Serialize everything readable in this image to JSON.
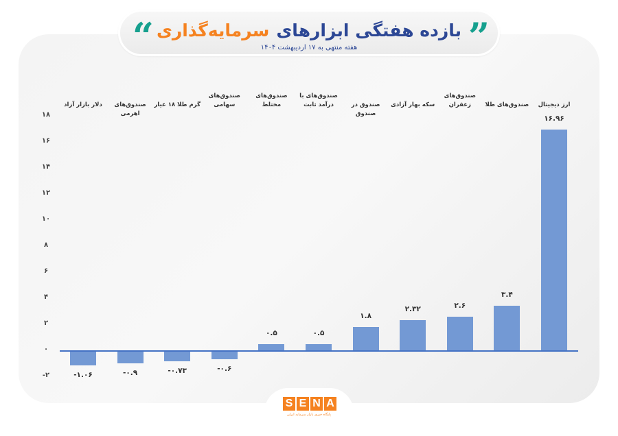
{
  "header": {
    "title_part1": "بازده هفتگی ابزارهای",
    "title_part2": "سرمایه‌گذاری",
    "subtitle": "هفته منتهی به ۱۷ اردیبهشت ۱۴۰۴",
    "quote_open": "”",
    "quote_close": "“",
    "colors": {
      "title_blue": "#2c4795",
      "title_orange": "#f58220",
      "quote_green": "#16a08e"
    }
  },
  "chart_data": {
    "type": "bar",
    "title": "بازده هفتگی ابزارهای سرمایه‌گذاری",
    "subtitle": "هفته منتهی به ۱۷ اردیبهشت ۱۴۰۴",
    "xlabel": "",
    "ylabel": "",
    "ylim": [
      -2,
      18
    ],
    "yticks": [
      "۱۸",
      "۱۶",
      "۱۴",
      "۱۲",
      "۱۰",
      "۸",
      "۶",
      "۴",
      "۲",
      "۰",
      "-۲"
    ],
    "ytick_values": [
      18,
      16,
      14,
      12,
      10,
      8,
      6,
      4,
      2,
      0,
      -2
    ],
    "grid": false,
    "legend": "none",
    "bar_color": "#7399d4",
    "categories": [
      "دلار بازار آزاد",
      "صندوق‌های اهرمی",
      "گرم طلا ۱۸ عیار",
      "صندوق‌های سهامی",
      "صندوق‌های مختلط",
      "صندوق‌های با درآمد ثابت",
      "صندوق در صندوق",
      "سکه بهار آزادی",
      "صندوق‌های زعفران",
      "صندوق‌های طلا",
      "ارز دیجیتال"
    ],
    "category_lines": [
      [
        "دلار بازار آزاد"
      ],
      [
        "صندوق‌های اهرمی"
      ],
      [
        "گرم طلا ۱۸ عیار"
      ],
      [
        "صندوق‌های",
        "سهامی"
      ],
      [
        "صندوق‌های",
        "مختلط"
      ],
      [
        "صندوق‌های با",
        "درآمد ثابت"
      ],
      [
        "صندوق در صندوق"
      ],
      [
        "سکه بهار آزادی"
      ],
      [
        "صندوق‌های",
        "زعفران"
      ],
      [
        "صندوق‌های طلا"
      ],
      [
        "ارز دیجیتال"
      ]
    ],
    "values": [
      -1.06,
      -0.9,
      -0.73,
      -0.6,
      0.5,
      0.5,
      1.8,
      2.32,
      2.6,
      3.4,
      16.96
    ],
    "value_labels": [
      "-۱.۰۶",
      "-۰.۹",
      "-۰.۷۳",
      "-۰.۶",
      "۰.۵",
      "۰.۵",
      "۱.۸",
      "۲.۳۲",
      "۲.۶",
      "۳.۴",
      "۱۶.۹۶"
    ]
  },
  "footer": {
    "logo_letters": [
      "S",
      "E",
      "N",
      "A"
    ],
    "logo_tagline": "پایگاه خبری بازار سرمایه ایران"
  }
}
